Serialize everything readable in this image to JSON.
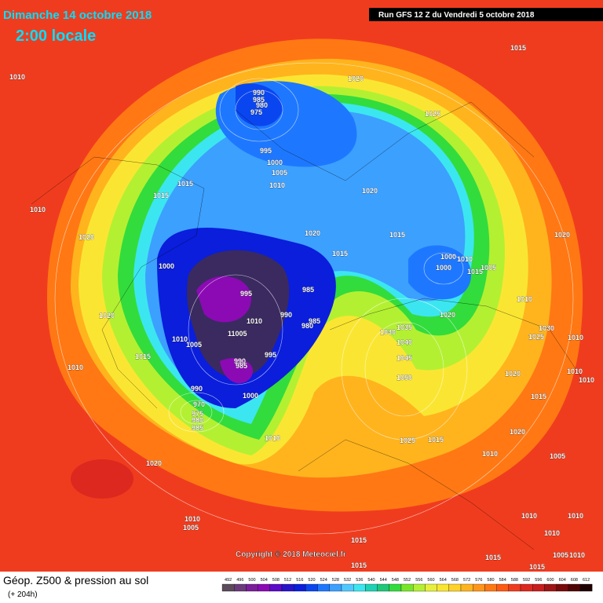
{
  "header": {
    "title": "Dimanche 14 octobre 2018",
    "time": "2:00 locale",
    "run": "Run GFS 12 Z du Vendredi 5 octobre 2018"
  },
  "map": {
    "isobar_labels": [
      1010,
      1020,
      1015,
      990,
      985,
      980,
      975,
      1025,
      995,
      1000,
      1005,
      1010,
      1015,
      1015,
      1020,
      1010,
      1020,
      1020,
      1015,
      1020,
      1015,
      1000,
      1000,
      1000,
      1010,
      1015,
      1005,
      995,
      985,
      1010,
      1020,
      990,
      1010,
      985,
      980,
      1020,
      1035,
      1030,
      1030,
      1025,
      1010,
      1010,
      1005,
      11005,
      1040,
      995,
      990,
      985,
      1015,
      1045,
      1010,
      1020,
      1010,
      1010,
      1050,
      990,
      1000,
      1015,
      970,
      975,
      980,
      985,
      1010,
      1025,
      1015,
      1020,
      1010,
      1005,
      1020,
      1010,
      1010,
      1010,
      1005,
      1010,
      1015,
      1015,
      1005,
      1010,
      1015,
      1015
    ],
    "copyright": "Copyright © 2018 Meteociel.fr"
  },
  "footer": {
    "title": "Géop. Z500 & pression au sol",
    "lead": "(+ 204h)"
  },
  "colorbar": {
    "ticks": [
      492,
      496,
      500,
      504,
      508,
      512,
      516,
      520,
      524,
      528,
      532,
      536,
      540,
      544,
      548,
      552,
      556,
      560,
      564,
      568,
      572,
      576,
      580,
      584,
      588,
      592,
      596,
      600,
      604,
      608,
      612
    ],
    "colors": [
      "#5a4a5a",
      "#6a3a7a",
      "#7a1e9a",
      "#8c0ab4",
      "#5a0ac8",
      "#2814c8",
      "#0a1edc",
      "#0a46f0",
      "#1e78ff",
      "#3ca0ff",
      "#50c8ff",
      "#3ce6f0",
      "#1ed2b4",
      "#1ec878",
      "#32dc3c",
      "#78e628",
      "#b4f032",
      "#e6f03c",
      "#fae632",
      "#ffd228",
      "#ffb41e",
      "#ff9619",
      "#ff7814",
      "#ff5a14",
      "#f03c1e",
      "#dc281e",
      "#c81e1e",
      "#a01414",
      "#780a0a",
      "#500505",
      "#1e0000"
    ]
  }
}
